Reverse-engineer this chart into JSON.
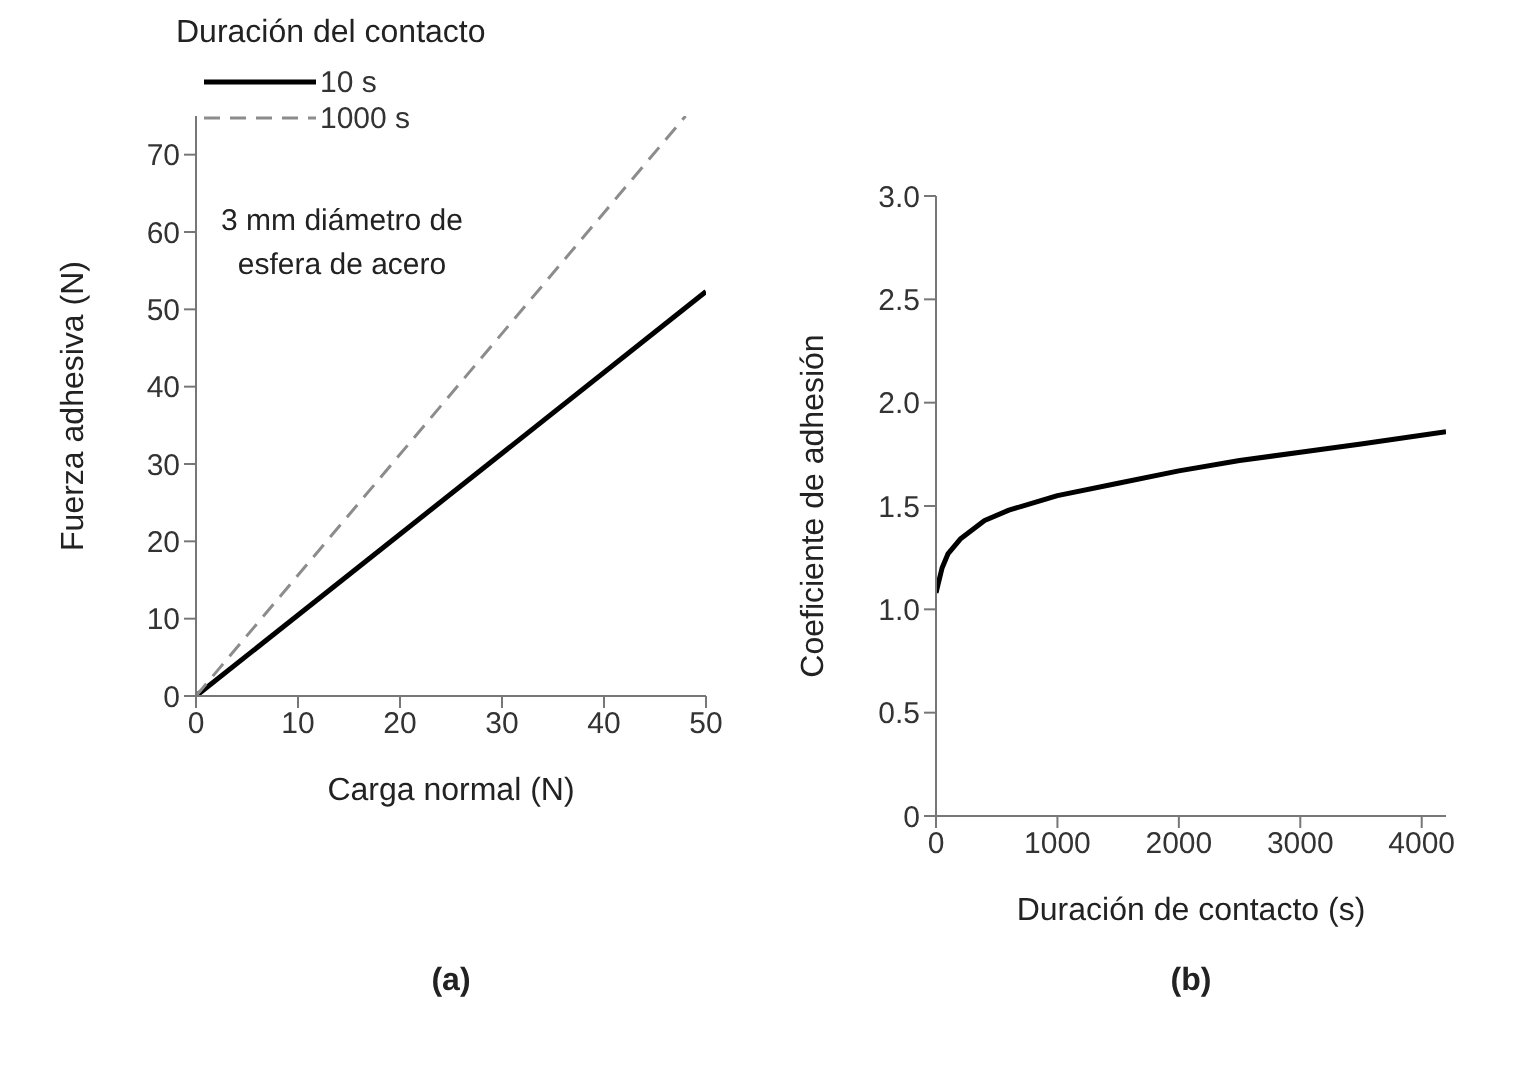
{
  "chart_data": [
    {
      "type": "line",
      "xlabel": "Carga normal (N)",
      "ylabel": "Fuerza adhesiva (N)",
      "legend_title": "Duración del contacto",
      "legend": "top left",
      "xlim": [
        0,
        50
      ],
      "xticks": [
        0,
        10,
        20,
        30,
        40,
        50
      ],
      "ylim": [
        0,
        75
      ],
      "yticks": [
        0,
        10,
        20,
        30,
        40,
        50,
        60,
        70
      ],
      "annotations": [
        "3 mm diámetro de esfera de acero",
        "(a)"
      ],
      "series": [
        {
          "name": "10 s",
          "color": "#000000",
          "line_style": "solid",
          "x": [
            0,
            50
          ],
          "values": [
            0,
            52.3
          ]
        },
        {
          "name": "1000 s",
          "color": "#8c8c8c",
          "line_style": "dashed",
          "x": [
            0,
            48
          ],
          "values": [
            0,
            75
          ]
        }
      ]
    },
    {
      "type": "line",
      "xlabel": "Duración de contacto (s)",
      "ylabel": "Coeficiente de adhesión",
      "xlim": [
        0,
        4200
      ],
      "xticks": [
        0,
        1000,
        2000,
        3000,
        4000
      ],
      "ylim": [
        0,
        3
      ],
      "yticks": [
        0,
        {
          "value": 0.5,
          "label": "0.5"
        },
        {
          "value": 1,
          "label": "1.0"
        },
        {
          "value": 1.5,
          "label": "1.5"
        },
        {
          "value": 2,
          "label": "2.0"
        },
        {
          "value": 2.5,
          "label": "2.5"
        },
        {
          "value": 3,
          "label": "3.0"
        }
      ],
      "annotations": [
        "(b)"
      ],
      "series": [
        {
          "color": "#000000",
          "x": [
            0,
            50,
            100,
            200,
            400,
            600,
            1000,
            1500,
            2000,
            2500,
            3000,
            3500,
            4200
          ],
          "values": [
            1.08,
            1.2,
            1.27,
            1.34,
            1.43,
            1.48,
            1.55,
            1.61,
            1.67,
            1.72,
            1.76,
            1.8,
            1.86
          ]
        }
      ]
    }
  ]
}
